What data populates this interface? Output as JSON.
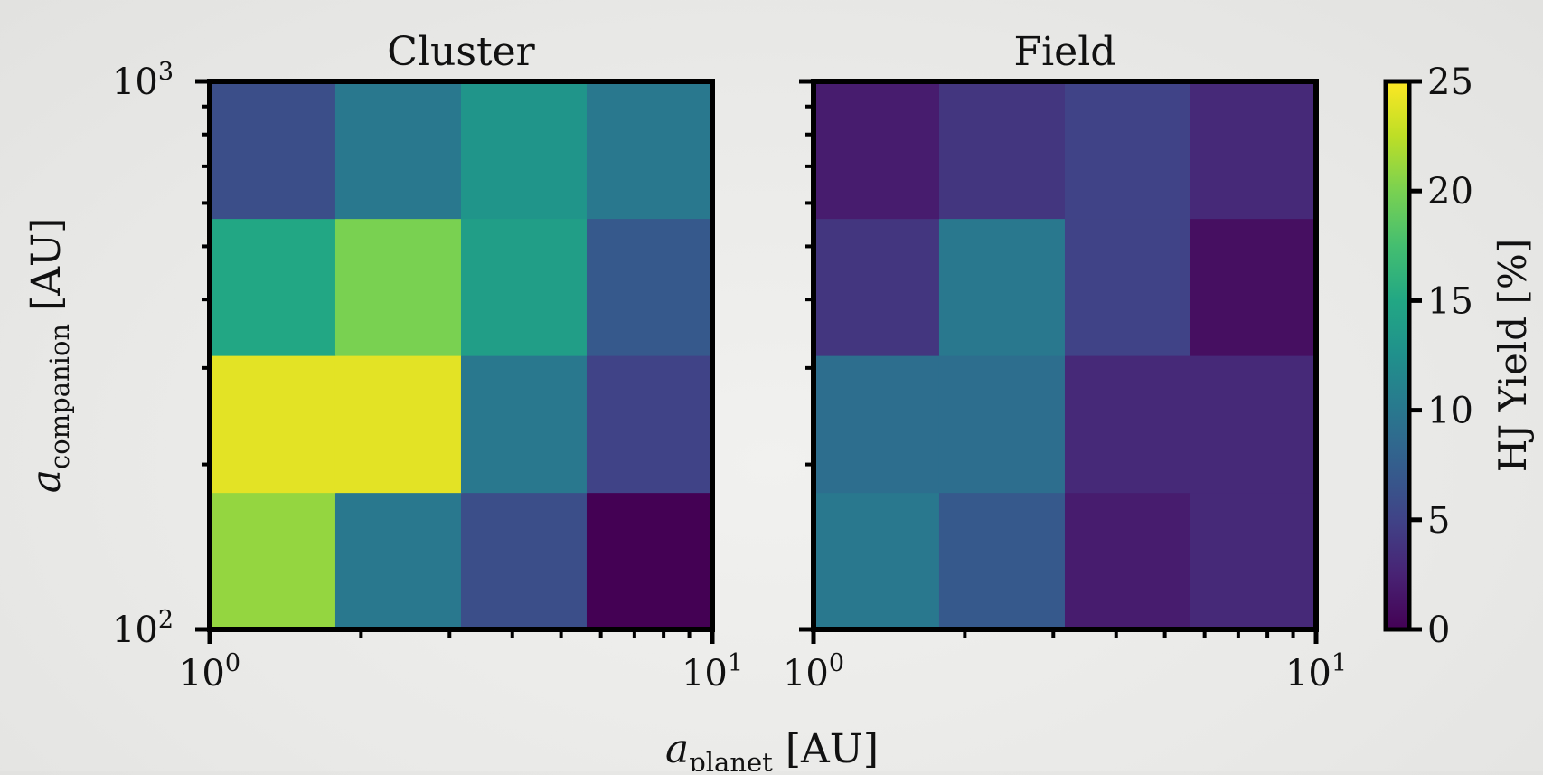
{
  "chart_data": {
    "type": "heatmap",
    "x_edges": [
      1,
      1.778,
      3.162,
      5.623,
      10
    ],
    "y_edges": [
      100,
      177.8,
      316.2,
      562.3,
      1000
    ],
    "x_scale": "log",
    "y_scale": "log",
    "xlim": [
      1,
      10
    ],
    "ylim": [
      100,
      1000
    ],
    "xlabel_main": "a",
    "xlabel_sub": "planet",
    "xlabel_unit": " [AU]",
    "ylabel_main": "a",
    "ylabel_sub": "companion",
    "ylabel_unit": " [AU]",
    "x_major_ticks": [
      {
        "base": "10",
        "exp": "0"
      },
      {
        "base": "10",
        "exp": "1"
      }
    ],
    "y_major_ticks": [
      {
        "base": "10",
        "exp": "2"
      },
      {
        "base": "10",
        "exp": "3"
      }
    ],
    "panels": [
      {
        "title": "Cluster",
        "values": [
          [
            21,
            10,
            6,
            0
          ],
          [
            24,
            24,
            10,
            5
          ],
          [
            15,
            20,
            14,
            7
          ],
          [
            6,
            10,
            13,
            10
          ]
        ]
      },
      {
        "title": "Field",
        "values": [
          [
            10,
            7,
            2,
            3
          ],
          [
            9,
            9,
            3,
            3
          ],
          [
            4,
            10,
            5,
            1
          ],
          [
            2,
            4,
            5,
            3
          ]
        ]
      }
    ],
    "colorbar": {
      "label": "HJ Yield [%]",
      "min": 0,
      "max": 25,
      "ticks": [
        "0",
        "5",
        "10",
        "15",
        "20",
        "25"
      ],
      "colormap": "viridis"
    },
    "grid": false
  }
}
